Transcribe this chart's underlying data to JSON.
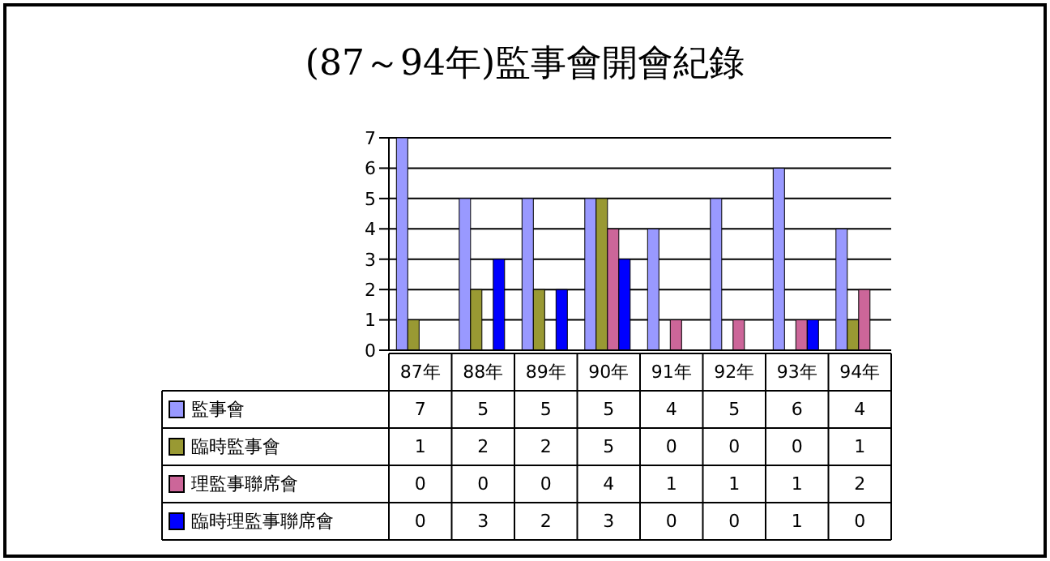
{
  "chart_data": {
    "type": "bar",
    "title": "(87～94年)監事會開會紀錄",
    "categories": [
      "87年",
      "88年",
      "89年",
      "90年",
      "91年",
      "92年",
      "93年",
      "94年"
    ],
    "series": [
      {
        "name": "監事會",
        "color": "#9999ff",
        "values": [
          7,
          5,
          5,
          5,
          4,
          5,
          6,
          4
        ]
      },
      {
        "name": "臨時監事會",
        "color": "#999933",
        "values": [
          1,
          2,
          2,
          5,
          0,
          0,
          0,
          1
        ]
      },
      {
        "name": "理監事聯席會",
        "color": "#cc6699",
        "values": [
          0,
          0,
          0,
          4,
          1,
          1,
          1,
          2
        ]
      },
      {
        "name": "臨時理監事聯席會",
        "color": "#0000ff",
        "values": [
          0,
          3,
          2,
          3,
          0,
          0,
          1,
          0
        ]
      }
    ],
    "ylim": [
      0,
      7
    ],
    "yticks": [
      0,
      1,
      2,
      3,
      4,
      5,
      6,
      7
    ],
    "grid": "y",
    "legend": "bottom left",
    "data_labels": true
  }
}
